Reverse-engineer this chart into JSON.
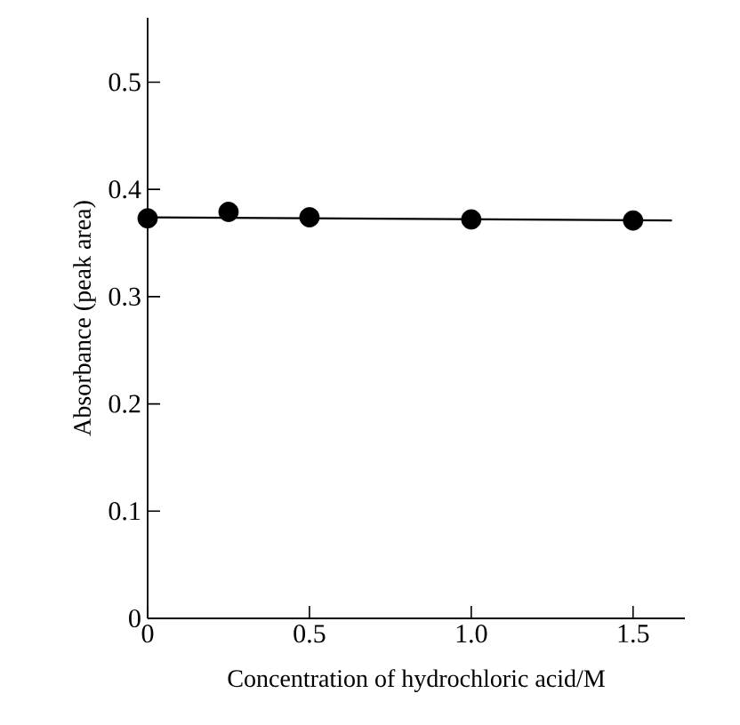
{
  "chart_data": {
    "type": "scatter",
    "xlabel": "Concentration of hydrochloric acid/M",
    "ylabel": "Absorbance (peak area)",
    "x": [
      0,
      0.25,
      0.5,
      1.0,
      1.5
    ],
    "series": [
      {
        "color": "#000000",
        "marker": "circle",
        "values": [
          0.373,
          0.379,
          0.374,
          0.372,
          0.371
        ]
      },
      {
        "type": "line",
        "color": "#000000",
        "marker": "none",
        "x": [
          0,
          1.62
        ],
        "values": [
          0.374,
          0.371
        ]
      }
    ],
    "xlim": [
      0,
      1.66
    ],
    "ylim": [
      0,
      0.56
    ],
    "xticks": [
      0,
      0.5,
      {
        "value": 1.0,
        "label": "1.0"
      },
      1.5
    ],
    "yticks": [
      0,
      0.1,
      0.2,
      0.3,
      0.4,
      0.5
    ]
  }
}
